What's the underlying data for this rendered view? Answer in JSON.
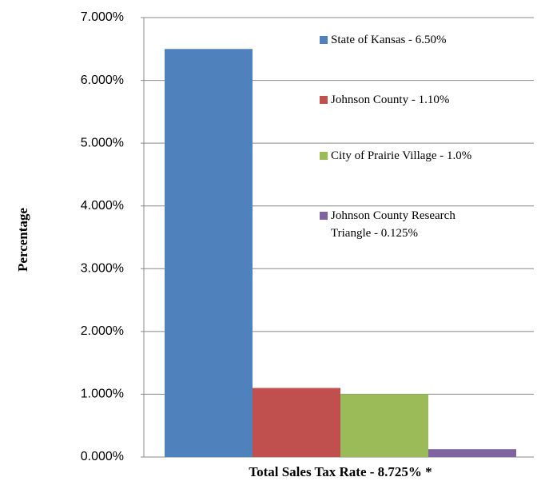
{
  "chart_data": {
    "type": "bar",
    "categories": [
      "Total Sales Tax Rate - 8.725% *"
    ],
    "y_label": "Percentage",
    "series": [
      {
        "name": "State of Kansas - 6.50%",
        "color": "#4f81bd",
        "values": [
          6.5
        ]
      },
      {
        "name": "Johnson County - 1.10%",
        "color": "#c0504d",
        "values": [
          1.1
        ]
      },
      {
        "name": "City of Prairie Village - 1.0%",
        "color": "#9bbb59",
        "values": [
          1.0
        ]
      },
      {
        "name": "Johnson County Research Triangle - 0.125%",
        "color": "#8064a2",
        "values": [
          0.125
        ]
      }
    ],
    "ylim": [
      0,
      7
    ],
    "yticks": [
      {
        "value": 0,
        "label": "0.000%"
      },
      {
        "value": 1,
        "label": "1.000%"
      },
      {
        "value": 2,
        "label": "2.000%"
      },
      {
        "value": 3,
        "label": "3.000%"
      },
      {
        "value": 4,
        "label": "4.000%"
      },
      {
        "value": 5,
        "label": "5.000%"
      },
      {
        "value": 6,
        "label": "6.000%"
      },
      {
        "value": 7,
        "label": "7.000%"
      }
    ],
    "grid": true,
    "legend": "upper right"
  }
}
